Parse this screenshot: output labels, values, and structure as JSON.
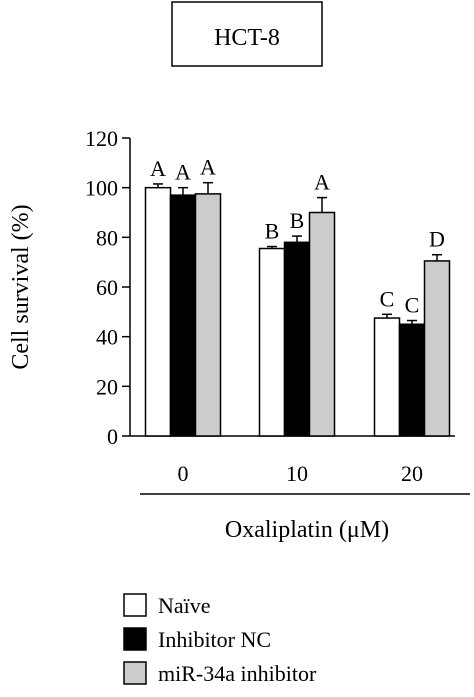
{
  "chart_data": {
    "type": "bar",
    "title": "HCT-8",
    "xlabel": "Oxaliplatin (μM)",
    "ylabel": "Cell survival (%)",
    "ylim": [
      0,
      120
    ],
    "yticks": [
      "0",
      "20",
      "40",
      "60",
      "80",
      "100",
      "120"
    ],
    "categories": [
      "0",
      "10",
      "20"
    ],
    "series": [
      {
        "name": "Naïve",
        "values": [
          100,
          75.5,
          47.5
        ],
        "errors": [
          1.5,
          0.8,
          1.5
        ],
        "letters": [
          "A",
          "B",
          "C"
        ],
        "color": "#ffffff"
      },
      {
        "name": "Inhibitor NC",
        "values": [
          97,
          78,
          45
        ],
        "errors": [
          3,
          2.5,
          1.5
        ],
        "letters": [
          "A",
          "B",
          "C"
        ],
        "color": "#000000"
      },
      {
        "name": "miR-34a inhibitor",
        "values": [
          97.5,
          90,
          70.5
        ],
        "errors": [
          4.5,
          6,
          2.5
        ],
        "letters": [
          "A",
          "A",
          "D"
        ],
        "color": "#cccccc"
      }
    ],
    "grid": false,
    "legend_position": "bottom-left"
  }
}
